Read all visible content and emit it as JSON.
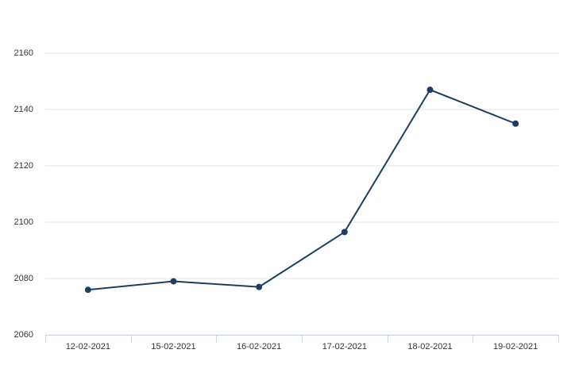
{
  "chart_data": {
    "type": "line",
    "categories": [
      "12-02-2021",
      "15-02-2021",
      "16-02-2021",
      "17-02-2021",
      "18-02-2021",
      "19-02-2021"
    ],
    "values": [
      2076,
      2079,
      2077,
      2096.5,
      2147,
      2135
    ],
    "color": "#1b3f62",
    "ylim": [
      2060,
      2160
    ],
    "yticks": [
      2060,
      2080,
      2100,
      2120,
      2140,
      2160
    ],
    "grid": true
  }
}
